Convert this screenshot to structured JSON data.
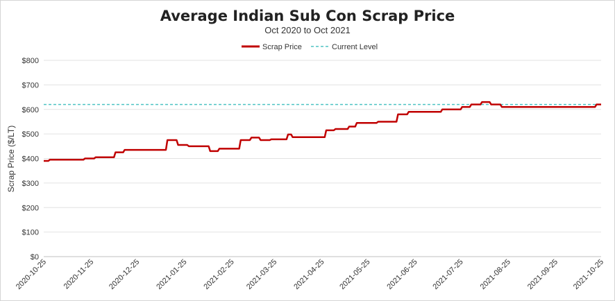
{
  "chart_data": {
    "type": "line",
    "title": "Average Indian Sub Con Scrap Price",
    "subtitle": "Oct 2020 to Oct 2021",
    "xlabel": "",
    "ylabel": "Scrap Price ($/LT)",
    "ylim": [
      0,
      800
    ],
    "yticks": [
      0,
      100,
      200,
      300,
      400,
      500,
      600,
      700,
      800
    ],
    "ytick_labels": [
      "$0",
      "$100",
      "$200",
      "$300",
      "$400",
      "$500",
      "$600",
      "$700",
      "$800"
    ],
    "xlim": [
      "2020-10-25",
      "2021-10-25"
    ],
    "xtick_labels": [
      "2020-10-25",
      "2020-11-25",
      "2020-12-25",
      "2021-01-25",
      "2021-02-25",
      "2021-03-25",
      "2021-04-25",
      "2021-05-25",
      "2021-06-25",
      "2021-07-25",
      "2021-08-25",
      "2021-09-25",
      "2021-10-25"
    ],
    "grid": true,
    "legend_position": "top-center",
    "colors": {
      "scrap": "#c00000",
      "current": "#4ec3c3"
    },
    "series": [
      {
        "name": "Scrap Price",
        "style": "solid",
        "points": [
          [
            "2020-10-25",
            390
          ],
          [
            "2020-10-28",
            390
          ],
          [
            "2020-10-29",
            395
          ],
          [
            "2020-11-20",
            395
          ],
          [
            "2020-11-21",
            400
          ],
          [
            "2020-11-27",
            400
          ],
          [
            "2020-11-28",
            405
          ],
          [
            "2020-12-10",
            405
          ],
          [
            "2020-12-11",
            425
          ],
          [
            "2020-12-16",
            425
          ],
          [
            "2020-12-17",
            435
          ],
          [
            "2021-01-13",
            435
          ],
          [
            "2021-01-14",
            475
          ],
          [
            "2021-01-20",
            475
          ],
          [
            "2021-01-21",
            455
          ],
          [
            "2021-01-27",
            455
          ],
          [
            "2021-01-28",
            450
          ],
          [
            "2021-02-10",
            450
          ],
          [
            "2021-02-11",
            430
          ],
          [
            "2021-02-16",
            430
          ],
          [
            "2021-02-17",
            440
          ],
          [
            "2021-03-02",
            440
          ],
          [
            "2021-03-03",
            475
          ],
          [
            "2021-03-09",
            475
          ],
          [
            "2021-03-10",
            485
          ],
          [
            "2021-03-15",
            485
          ],
          [
            "2021-03-16",
            475
          ],
          [
            "2021-03-22",
            475
          ],
          [
            "2021-03-23",
            478
          ],
          [
            "2021-04-02",
            478
          ],
          [
            "2021-04-03",
            498
          ],
          [
            "2021-04-05",
            498
          ],
          [
            "2021-04-06",
            487
          ],
          [
            "2021-04-27",
            487
          ],
          [
            "2021-04-28",
            515
          ],
          [
            "2021-05-03",
            515
          ],
          [
            "2021-05-04",
            520
          ],
          [
            "2021-05-12",
            520
          ],
          [
            "2021-05-13",
            530
          ],
          [
            "2021-05-17",
            530
          ],
          [
            "2021-05-18",
            545
          ],
          [
            "2021-05-31",
            545
          ],
          [
            "2021-06-01",
            550
          ],
          [
            "2021-06-13",
            550
          ],
          [
            "2021-06-14",
            580
          ],
          [
            "2021-06-20",
            580
          ],
          [
            "2021-06-21",
            590
          ],
          [
            "2021-07-12",
            590
          ],
          [
            "2021-07-13",
            600
          ],
          [
            "2021-07-25",
            600
          ],
          [
            "2021-07-26",
            610
          ],
          [
            "2021-07-31",
            610
          ],
          [
            "2021-08-01",
            620
          ],
          [
            "2021-08-07",
            620
          ],
          [
            "2021-08-08",
            630
          ],
          [
            "2021-08-13",
            630
          ],
          [
            "2021-08-14",
            620
          ],
          [
            "2021-08-20",
            620
          ],
          [
            "2021-08-21",
            610
          ],
          [
            "2021-10-21",
            610
          ],
          [
            "2021-10-22",
            620
          ],
          [
            "2021-10-25",
            620
          ]
        ]
      },
      {
        "name": "Current Level",
        "style": "dashed",
        "points": [
          [
            "2020-10-25",
            620
          ],
          [
            "2021-10-25",
            620
          ]
        ]
      }
    ]
  }
}
